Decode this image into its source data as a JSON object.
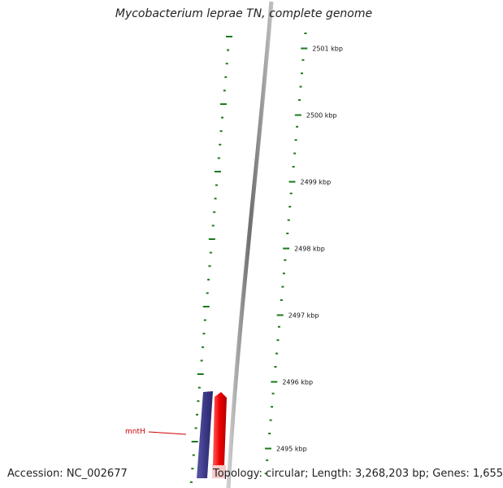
{
  "title": "Mycobacterium leprae TN, complete genome",
  "footer": {
    "accession": "Accession: NC_002677",
    "topology": "Topology: circular; Length: 3,268,203 bp; Genes: 1,655"
  },
  "scale": {
    "unit": "kbp",
    "labeled_ticks": [
      {
        "kbp": 2501,
        "label": "2501 kbp"
      },
      {
        "kbp": 2500,
        "label": "2500 kbp"
      },
      {
        "kbp": 2499,
        "label": "2499 kbp"
      },
      {
        "kbp": 2498,
        "label": "2498 kbp"
      },
      {
        "kbp": 2497,
        "label": "2497 kbp"
      },
      {
        "kbp": 2496,
        "label": "2496 kbp"
      },
      {
        "kbp": 2495,
        "label": "2495 kbp"
      }
    ]
  },
  "genes": [
    {
      "name": "mntH",
      "strand": "forward",
      "color": "#ee0000",
      "label_color": "#cc0000"
    }
  ],
  "colors": {
    "tick": "#1a7a1a",
    "backbone": "#7f7f7f",
    "reverse_feature": "#3d3a8a",
    "forward_feature": "#ee0000"
  }
}
